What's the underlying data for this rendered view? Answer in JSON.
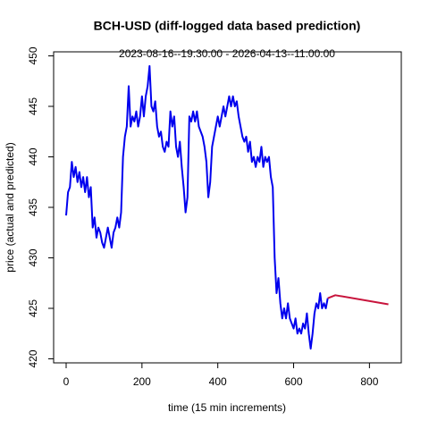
{
  "chart_data": {
    "type": "line",
    "title": "BCH-USD (diff-logged data based prediction)",
    "subtitle": "2023-08-16--19:30:00  -  2026-04-13--11:00:00",
    "x_label": "time (15 min increments)",
    "y_label": "price (actual and predicted)",
    "xlim": [
      -33,
      884
    ],
    "ylim": [
      419.6,
      450.4
    ],
    "xticks": [
      0,
      200,
      400,
      600,
      800
    ],
    "yticks": [
      420,
      425,
      430,
      435,
      440,
      445,
      450
    ],
    "series": [
      {
        "color": "#0000ee",
        "x": [
          0,
          5,
          10,
          15,
          20,
          25,
          30,
          35,
          40,
          45,
          50,
          55,
          60,
          65,
          70,
          75,
          80,
          85,
          90,
          95,
          100,
          105,
          110,
          115,
          120,
          125,
          130,
          135,
          140,
          145,
          150,
          155,
          160,
          165,
          170,
          175,
          180,
          185,
          190,
          195,
          200,
          205,
          210,
          215,
          220,
          225,
          230,
          235,
          240,
          245,
          250,
          255,
          260,
          265,
          270,
          275,
          280,
          285,
          290,
          295,
          300,
          305,
          310,
          315,
          320,
          325,
          330,
          335,
          340,
          345,
          350,
          355,
          360,
          365,
          370,
          375,
          380,
          385,
          390,
          395,
          400,
          405,
          410,
          415,
          420,
          425,
          430,
          435,
          440,
          445,
          450,
          455,
          460,
          465,
          470,
          475,
          480,
          485,
          490,
          495,
          500,
          505,
          510,
          515,
          520,
          525,
          530,
          535,
          540,
          545,
          550,
          555,
          560,
          565,
          570,
          575,
          580,
          585,
          590,
          595,
          600,
          605,
          610,
          615,
          620,
          625,
          630,
          635,
          640,
          645,
          650,
          655,
          660,
          665,
          670,
          675,
          680,
          685,
          690
        ],
        "values": [
          434.2,
          436.5,
          437,
          439.5,
          438,
          439,
          437.5,
          438.5,
          437,
          438,
          436.5,
          438,
          436,
          437,
          433,
          434,
          432,
          433,
          432.5,
          431.5,
          431,
          432,
          433,
          432,
          431,
          432.5,
          433,
          434,
          433,
          434.5,
          440,
          442,
          443,
          447,
          443,
          444,
          443.5,
          444.5,
          443,
          444,
          446,
          444,
          446,
          447,
          449,
          445,
          444.5,
          445.5,
          443,
          442,
          442.5,
          441,
          440.5,
          441.5,
          441,
          444.5,
          443,
          444,
          441,
          440,
          441.5,
          439,
          437,
          434.5,
          436,
          444,
          443.5,
          444.5,
          443.5,
          444.5,
          443,
          442.5,
          442,
          441,
          439.5,
          436,
          437.5,
          441,
          442,
          443,
          444,
          443,
          444,
          445,
          444,
          445,
          446,
          445,
          446,
          445,
          445.5,
          444,
          443,
          442,
          441.5,
          442,
          440.5,
          441.5,
          439.5,
          440,
          439,
          440,
          439.5,
          441,
          439,
          440,
          439.5,
          440,
          438,
          437,
          430,
          426.5,
          428,
          425.5,
          424,
          425,
          424,
          425.5,
          424,
          423.5,
          423,
          424,
          422.5,
          423,
          422.5,
          423.5,
          423,
          424.5,
          422.5,
          421,
          422.5,
          424.5,
          425.5,
          425,
          426.5,
          425,
          425.5,
          425,
          426
        ]
      },
      {
        "color": "#c8143c",
        "x": [
          690,
          710,
          850
        ],
        "values": [
          426,
          426.3,
          425.4
        ]
      }
    ]
  }
}
